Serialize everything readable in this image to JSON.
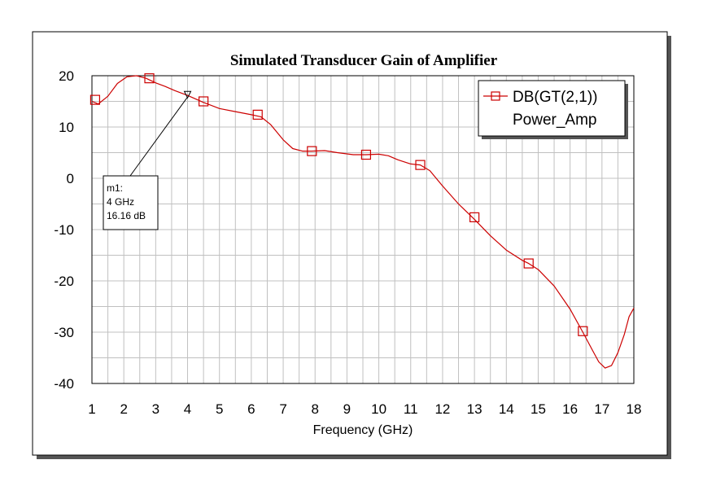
{
  "chart_data": {
    "type": "line",
    "title": "Simulated Transducer Gain of Amplifier",
    "xlabel": "Frequency (GHz)",
    "ylabel": "",
    "xlim": [
      1,
      18
    ],
    "ylim": [
      -40,
      20
    ],
    "xticks": [
      1,
      2,
      3,
      4,
      5,
      6,
      7,
      8,
      9,
      10,
      11,
      12,
      13,
      14,
      15,
      16,
      17,
      18
    ],
    "yticks": [
      20,
      10,
      0,
      -10,
      -20,
      -30,
      -40
    ],
    "grid": true,
    "legend_position": "top-right",
    "legend": {
      "entries": [
        {
          "label": "DB(GT(2,1))",
          "sublabel": "Power_Amp"
        }
      ]
    },
    "series": [
      {
        "name": "DB(GT(2,1))",
        "color": "#cc0000",
        "marker": "square",
        "x": [
          1.0,
          1.2,
          1.5,
          1.8,
          2.1,
          2.4,
          2.7,
          3.0,
          3.3,
          3.6,
          4.0,
          4.5,
          5.0,
          5.5,
          6.0,
          6.3,
          6.6,
          7.0,
          7.3,
          7.6,
          7.9,
          8.3,
          8.7,
          9.2,
          9.6,
          10.0,
          10.3,
          10.6,
          11.0,
          11.3,
          11.6,
          12.0,
          12.5,
          13.0,
          13.5,
          14.0,
          14.5,
          14.7,
          15.0,
          15.5,
          16.0,
          16.4,
          16.7,
          16.9,
          17.1,
          17.3,
          17.5,
          17.7,
          17.85,
          18.0
        ],
        "y": [
          15.0,
          14.5,
          16.0,
          18.5,
          19.8,
          20.0,
          19.5,
          18.6,
          17.9,
          17.1,
          16.16,
          14.8,
          13.6,
          13.0,
          12.4,
          12.0,
          10.5,
          7.5,
          5.8,
          5.3,
          5.3,
          5.4,
          5.0,
          4.6,
          4.6,
          4.7,
          4.4,
          3.6,
          2.8,
          2.6,
          1.5,
          -1.5,
          -5.0,
          -8.0,
          -11.2,
          -14.0,
          -16.0,
          -16.6,
          -17.8,
          -21.0,
          -25.5,
          -30.0,
          -33.5,
          -35.8,
          -37.0,
          -36.5,
          -34.0,
          -30.5,
          -27.0,
          -25.3
        ],
        "marker_points": [
          {
            "x": 1.1,
            "y": 15.3
          },
          {
            "x": 2.8,
            "y": 19.5
          },
          {
            "x": 4.5,
            "y": 15.0
          },
          {
            "x": 6.2,
            "y": 12.4
          },
          {
            "x": 7.9,
            "y": 5.3
          },
          {
            "x": 9.6,
            "y": 4.6
          },
          {
            "x": 11.3,
            "y": 2.6
          },
          {
            "x": 13.0,
            "y": -7.6
          },
          {
            "x": 14.7,
            "y": -16.6
          },
          {
            "x": 16.4,
            "y": -29.8
          }
        ]
      }
    ],
    "marker_annotation": {
      "name": "m1:",
      "x_label": "4 GHz",
      "y_label": "16.16 dB",
      "x": 4,
      "y": 16.16
    }
  }
}
